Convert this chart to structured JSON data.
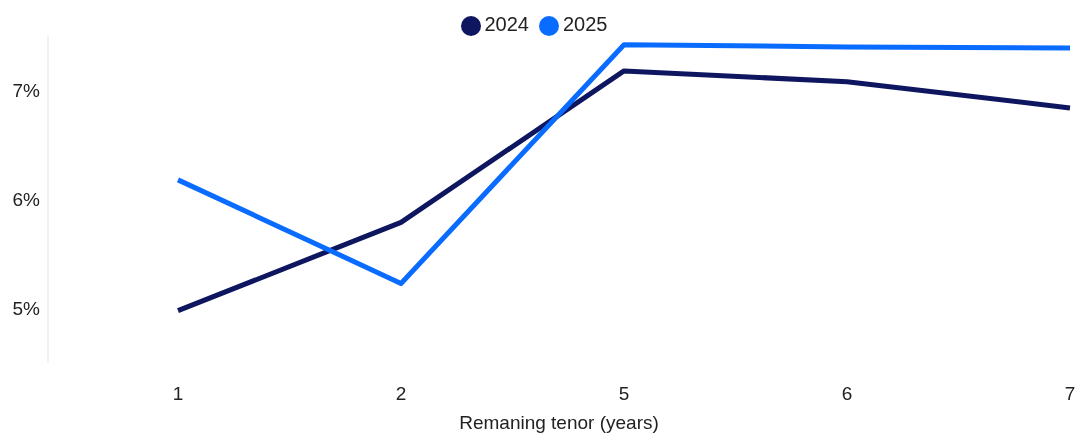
{
  "chart_data": {
    "type": "line",
    "xlabel": "Remaning tenor (years)",
    "categories": [
      "1",
      "2",
      "5",
      "6",
      "7"
    ],
    "series": [
      {
        "name": "2024",
        "color": "#0f1660",
        "values": [
          4.98,
          5.79,
          7.18,
          7.08,
          6.84
        ]
      },
      {
        "name": "2025",
        "color": "#0a6cff",
        "values": [
          6.18,
          5.23,
          7.42,
          7.4,
          7.39
        ]
      }
    ],
    "ylim": [
      4.5,
      7.5
    ],
    "yticks": [
      {
        "value": 5,
        "label": "5%"
      },
      {
        "value": 6,
        "label": "6%"
      },
      {
        "value": 7,
        "label": "7%"
      }
    ],
    "grid": false,
    "legend": "top",
    "marker": "none",
    "line_style": "solid"
  }
}
